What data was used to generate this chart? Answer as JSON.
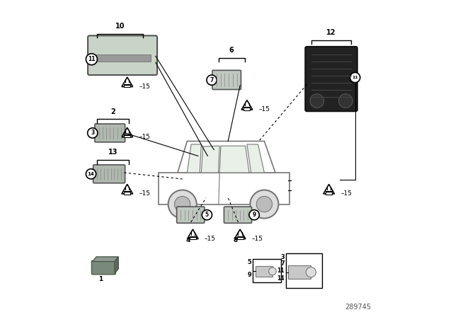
{
  "bg_color": "#ffffff",
  "fig_width": 6.4,
  "fig_height": 4.48,
  "part_number": "289745"
}
